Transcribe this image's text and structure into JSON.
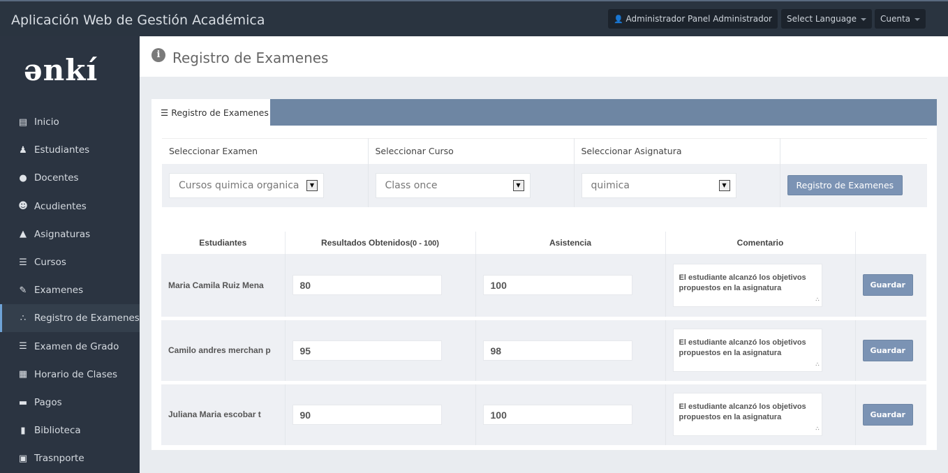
{
  "app_title": "Aplicación Web de Gestión Académica",
  "topbar": {
    "user": "Administrador Panel Administrador",
    "language": "Select Language",
    "account": "Cuenta"
  },
  "logo": "enki",
  "sidebar": {
    "items": [
      {
        "label": "Inicio",
        "icon": "monitor-icon"
      },
      {
        "label": "Estudiantes",
        "icon": "student-icon"
      },
      {
        "label": "Docentes",
        "icon": "user-icon"
      },
      {
        "label": "Acudientes",
        "icon": "guardian-icon"
      },
      {
        "label": "Asignaturas",
        "icon": "graduation-cap-icon"
      },
      {
        "label": "Cursos",
        "icon": "list-icon"
      },
      {
        "label": "Examenes",
        "icon": "pencil-icon"
      },
      {
        "label": "Registro de Examenes",
        "icon": "network-icon",
        "active": true
      },
      {
        "label": "Examen de Grado",
        "icon": "list-icon"
      },
      {
        "label": "Horario de Clases",
        "icon": "calendar-icon"
      },
      {
        "label": "Pagos",
        "icon": "credit-card-icon"
      },
      {
        "label": "Biblioteca",
        "icon": "books-icon"
      },
      {
        "label": "Trasnporte",
        "icon": "bus-icon"
      }
    ]
  },
  "page_title": "Registro de Examenes",
  "tab_label": "Registro de Examenes",
  "filters": {
    "headers": [
      "Seleccionar Examen",
      "Seleccionar Curso",
      "Seleccionar Asignatura"
    ],
    "values": [
      "Cursos quimica organica primer",
      "Class once",
      "quimica"
    ],
    "submit": "Registro de Examenes"
  },
  "table": {
    "headers": [
      "Estudiantes",
      "Resultados Obtenidos",
      "(0 - 100)",
      "Asistencia",
      "Comentario"
    ],
    "save_label": "Guardar",
    "rows": [
      {
        "name": "Maria Camila Ruiz Mena",
        "result": "80",
        "attendance": "100",
        "comment": "El estudiante alcanzó los objetivos propuestos en la asignatura"
      },
      {
        "name": "Camilo andres merchan p",
        "result": "95",
        "attendance": "98",
        "comment": "El estudiante alcanzó los objetivos propuestos en la asignatura"
      },
      {
        "name": "Juliana Maria escobar t",
        "result": "90",
        "attendance": "100",
        "comment": "El estudiante alcanzó los objetivos propuestos en la asignatura"
      }
    ]
  }
}
